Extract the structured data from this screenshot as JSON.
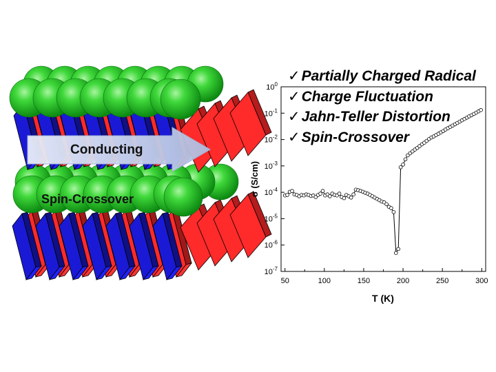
{
  "colors": {
    "sphere": "#22c425",
    "blue_block": "#1a1ad6",
    "red_block": "#ff2a2a",
    "arrow": "#c8d3ec"
  },
  "figure": {
    "conducting_label": "Conducting",
    "spin_crossover_label": "Spin-Crossover",
    "checkmark": "✓",
    "features": [
      "Partially Charged Radical",
      "Charge Fluctuation",
      "Jahn-Teller Distortion",
      "Spin-Crossover"
    ]
  },
  "chart_data": {
    "type": "scatter",
    "title": "",
    "xlabel": "T (K)",
    "ylabel": "σ (S/cm)",
    "xlim": [
      45,
      305
    ],
    "ylim_log10": [
      -7,
      0
    ],
    "yscale": "log",
    "x_ticks": [
      50,
      100,
      150,
      200,
      250,
      300
    ],
    "y_tick_labels": [
      "10-7",
      "10-6",
      "10-5",
      "10-4",
      "10-3",
      "10-2",
      "10-1",
      "100"
    ],
    "series": [
      {
        "name": "conductivity",
        "marker": "open-circle",
        "line": "solid",
        "x": [
          50,
          53,
          56,
          59,
          62,
          65,
          68,
          71,
          74,
          77,
          80,
          83,
          86,
          89,
          92,
          95,
          98,
          101,
          104,
          107,
          110,
          113,
          116,
          119,
          122,
          125,
          128,
          131,
          134,
          137,
          140,
          143,
          146,
          149,
          152,
          155,
          158,
          161,
          164,
          167,
          170,
          173,
          176,
          179,
          182,
          185,
          188,
          191,
          194,
          197,
          200,
          203,
          206,
          209,
          212,
          215,
          218,
          221,
          224,
          227,
          230,
          233,
          236,
          239,
          242,
          245,
          248,
          251,
          254,
          257,
          260,
          263,
          266,
          269,
          272,
          275,
          278,
          281,
          284,
          287,
          290,
          293,
          296,
          299
        ],
        "log10_sigma": [
          -4.12,
          -4.1,
          -3.98,
          -3.95,
          -4.08,
          -4.1,
          -4.15,
          -4.1,
          -4.12,
          -4.08,
          -4.1,
          -4.14,
          -4.12,
          -4.18,
          -4.1,
          -4.05,
          -3.95,
          -4.12,
          -4.08,
          -4.15,
          -4.05,
          -4.1,
          -4.12,
          -4.05,
          -4.18,
          -4.22,
          -4.1,
          -4.15,
          -4.2,
          -4.08,
          -3.9,
          -3.92,
          -3.95,
          -3.98,
          -4.02,
          -4.05,
          -4.1,
          -4.15,
          -4.2,
          -4.25,
          -4.3,
          -4.35,
          -4.38,
          -4.45,
          -4.55,
          -4.6,
          -4.75,
          -6.3,
          -6.15,
          -3.05,
          -2.95,
          -2.75,
          -2.6,
          -2.52,
          -2.45,
          -2.38,
          -2.32,
          -2.25,
          -2.18,
          -2.12,
          -2.05,
          -1.98,
          -1.92,
          -1.88,
          -1.83,
          -1.78,
          -1.73,
          -1.68,
          -1.62,
          -1.57,
          -1.52,
          -1.47,
          -1.42,
          -1.37,
          -1.32,
          -1.27,
          -1.22,
          -1.17,
          -1.12,
          -1.08,
          -1.03,
          -0.98,
          -0.93,
          -0.88
        ]
      }
    ]
  }
}
